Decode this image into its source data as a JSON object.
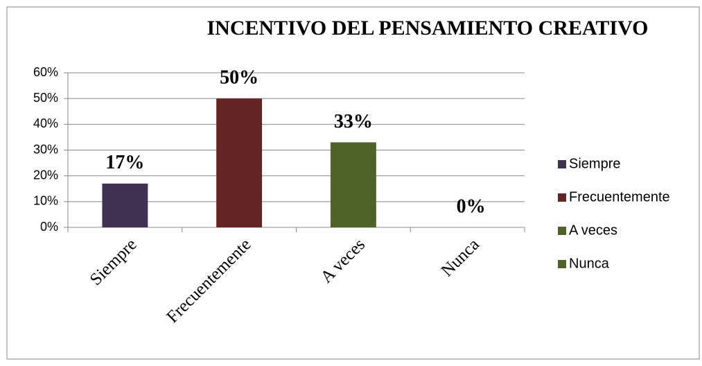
{
  "chart_data": {
    "type": "bar",
    "title": "INCENTIVO DEL  PENSAMIENTO CREATIVO",
    "categories": [
      "Siempre",
      "Frecuentemente",
      "A veces",
      "Nunca"
    ],
    "values": [
      17,
      50,
      33,
      0
    ],
    "value_labels": [
      "17%",
      "50%",
      "33%",
      "0%"
    ],
    "colors": [
      "#403152",
      "#632523",
      "#4f6228",
      "#4f6228"
    ],
    "ylim": [
      0,
      60
    ],
    "yticks": [
      {
        "value": 0,
        "label": "0%"
      },
      {
        "value": 10,
        "label": "10%"
      },
      {
        "value": 20,
        "label": "20%"
      },
      {
        "value": 30,
        "label": "30%"
      },
      {
        "value": 40,
        "label": "40%"
      },
      {
        "value": 50,
        "label": "50%"
      },
      {
        "value": 60,
        "label": "60%"
      }
    ],
    "grid": true,
    "legend": "right"
  }
}
